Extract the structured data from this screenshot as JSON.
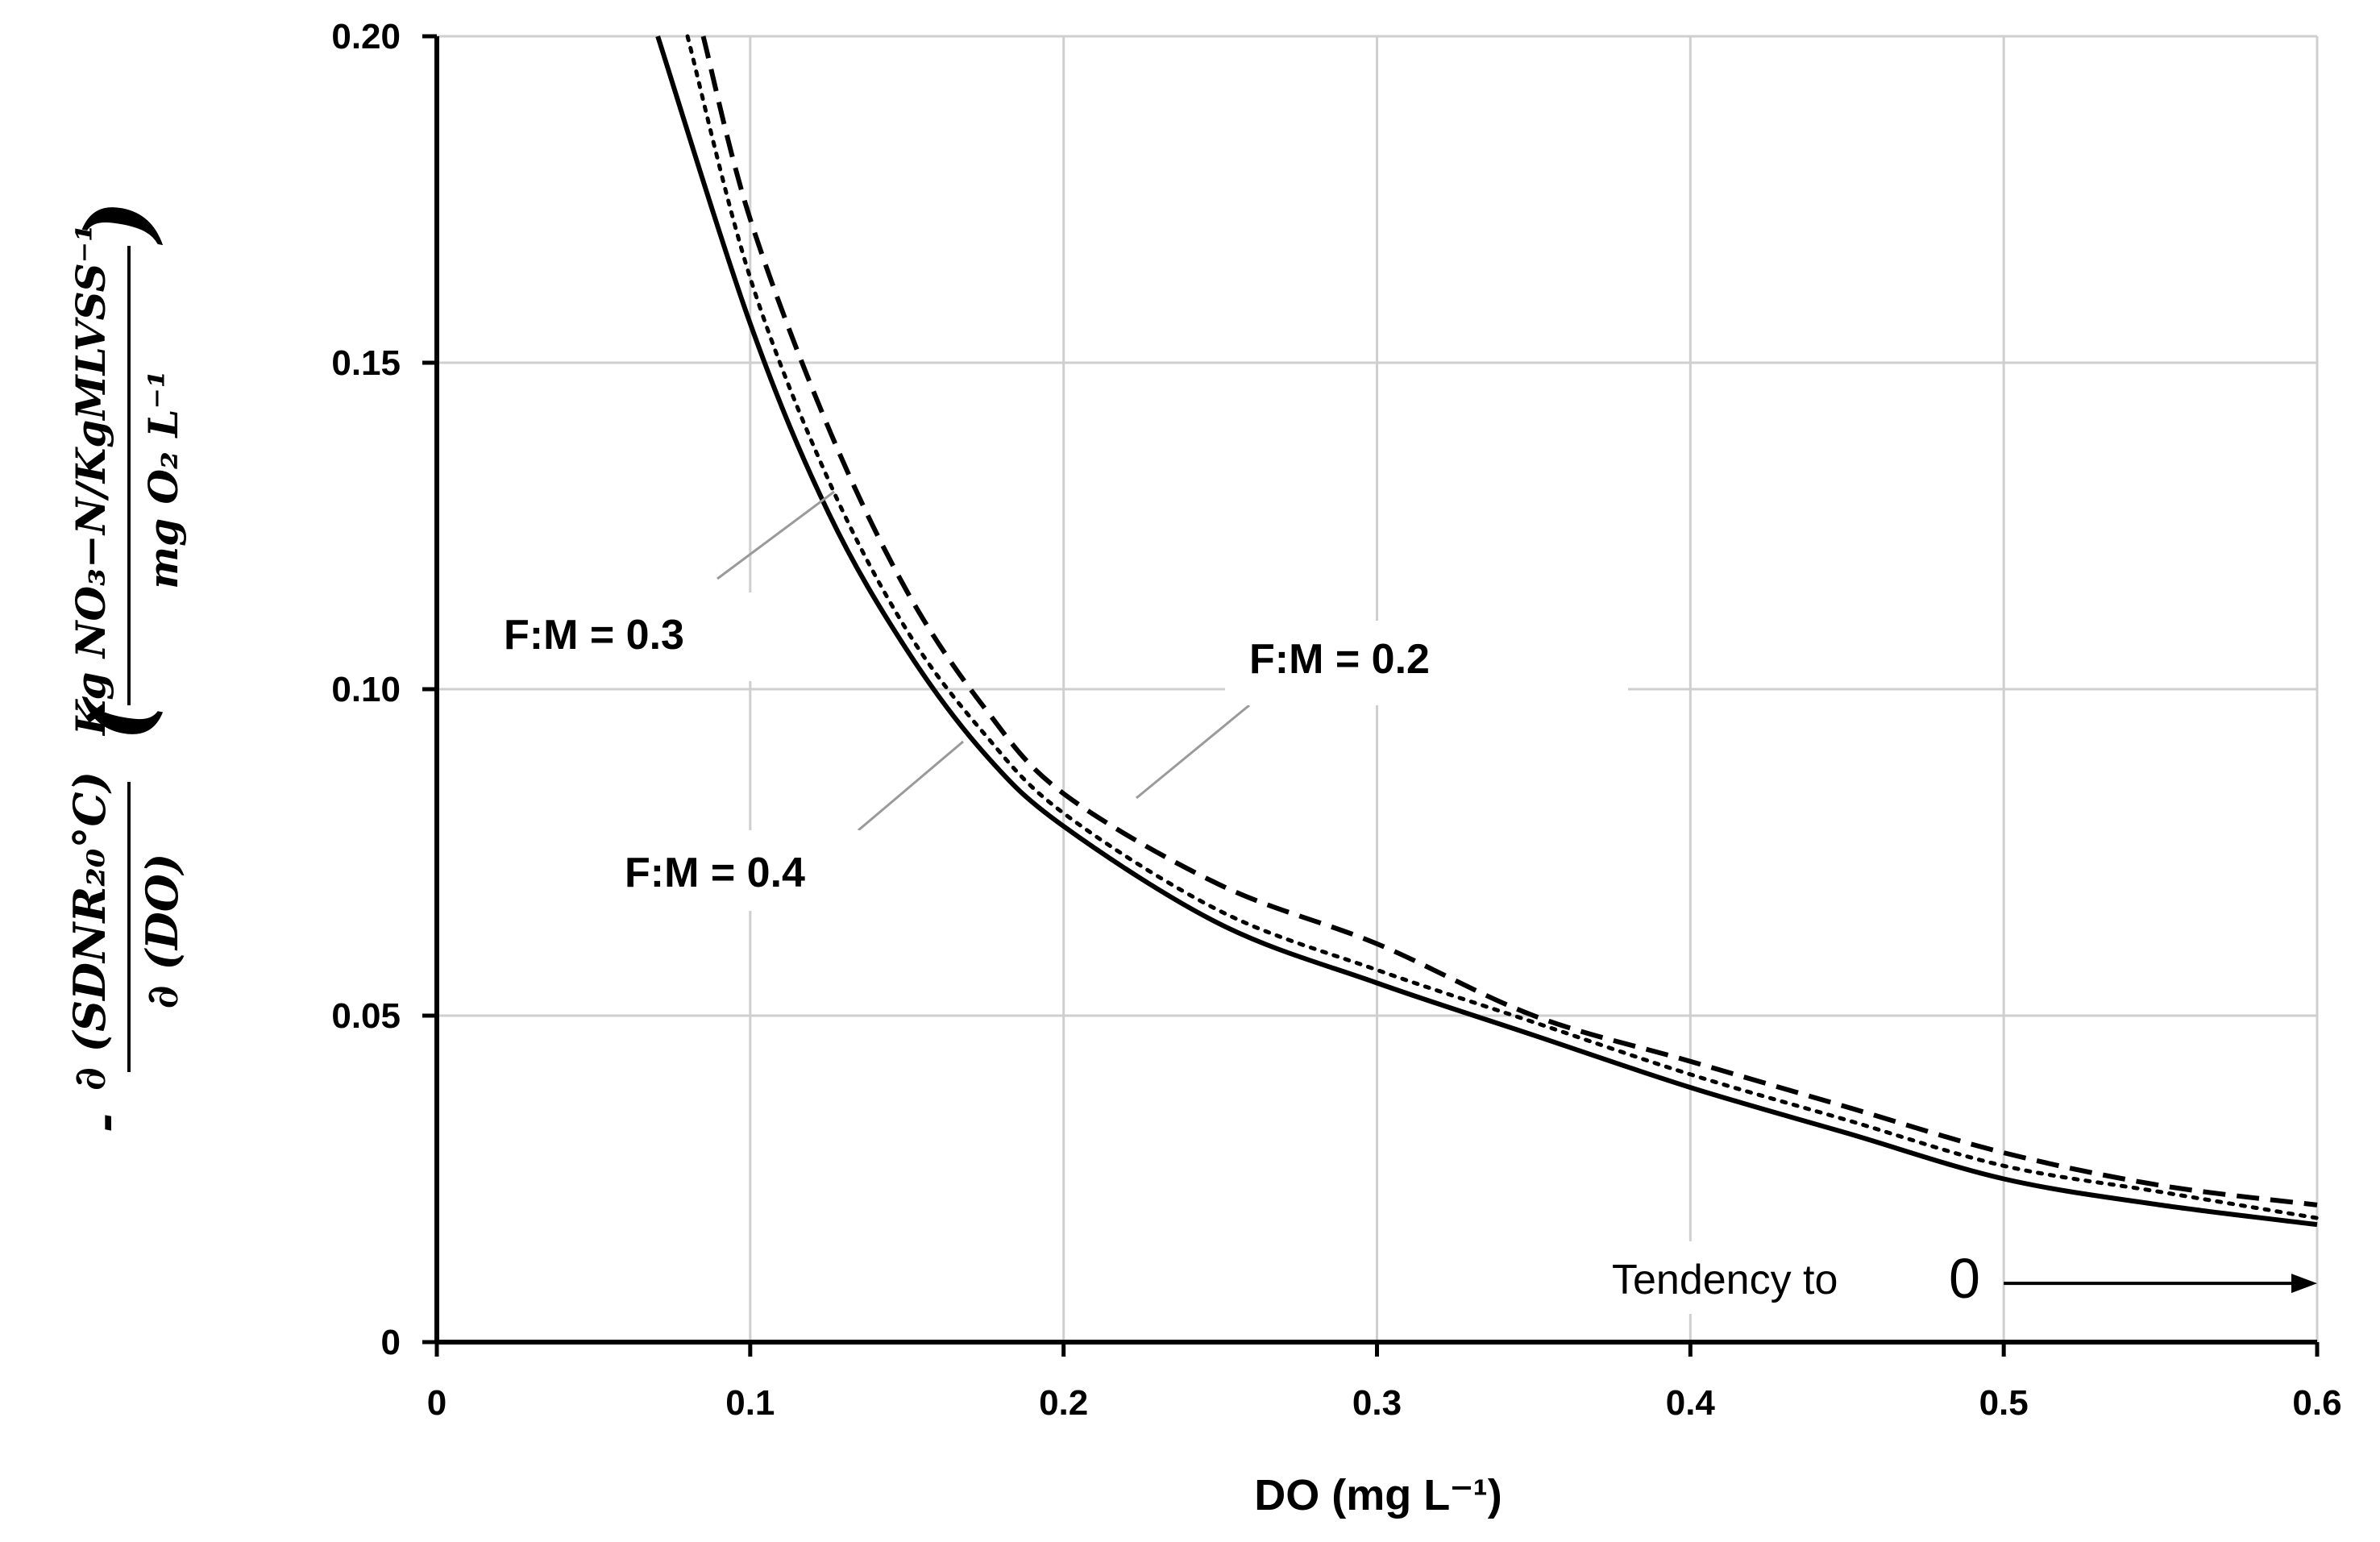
{
  "chart_data": {
    "type": "line",
    "xlabel": "DO (mg L⁻¹)",
    "ylabel": {
      "prefix": "-",
      "derivative_numerator": "∂ (SDNR₂₀°C)",
      "derivative_denominator": "∂ (DO)",
      "unit_numerator": "Kg NO₃−N/KgMLVSS⁻¹",
      "unit_denominator": "mg O₂ L⁻¹"
    },
    "xlim": [
      0,
      0.6
    ],
    "ylim": [
      0,
      0.2
    ],
    "x_ticks": [
      0,
      0.1,
      0.2,
      0.3,
      0.4,
      0.5,
      0.6
    ],
    "x_tick_labels": [
      "0",
      "0.1",
      "0.2",
      "0.3",
      "0.4",
      "0.5",
      "0.6"
    ],
    "y_ticks": [
      0,
      0.05,
      0.1,
      0.15,
      0.2
    ],
    "y_tick_labels": [
      "0",
      "0.05",
      "0.10",
      "0.15",
      "0.20"
    ],
    "grid": true,
    "series": [
      {
        "name": "F:M = 0.2",
        "style": "dashed",
        "x": [
          0.085,
          0.1,
          0.125,
          0.15,
          0.175,
          0.2,
          0.25,
          0.3,
          0.35,
          0.4,
          0.45,
          0.5,
          0.55,
          0.6
        ],
        "y": [
          0.2,
          0.172,
          0.14,
          0.115,
          0.097,
          0.084,
          0.07,
          0.061,
          0.05,
          0.043,
          0.036,
          0.029,
          0.024,
          0.021
        ]
      },
      {
        "name": "F:M = 0.3",
        "style": "dotted",
        "x": [
          0.08,
          0.1,
          0.125,
          0.15,
          0.175,
          0.2,
          0.25,
          0.3,
          0.35,
          0.4,
          0.45,
          0.5,
          0.55,
          0.6
        ],
        "y": [
          0.2,
          0.163,
          0.132,
          0.109,
          0.093,
          0.081,
          0.066,
          0.057,
          0.049,
          0.041,
          0.034,
          0.027,
          0.023,
          0.019
        ]
      },
      {
        "name": "F:M = 0.4",
        "style": "solid",
        "x": [
          0.0705,
          0.1,
          0.125,
          0.15,
          0.175,
          0.2,
          0.25,
          0.3,
          0.35,
          0.4,
          0.45,
          0.5,
          0.55,
          0.6
        ],
        "y": [
          0.2,
          0.156,
          0.127,
          0.106,
          0.09,
          0.079,
          0.064,
          0.055,
          0.047,
          0.039,
          0.032,
          0.025,
          0.021,
          0.018
        ]
      }
    ],
    "annotations": {
      "tendency_text": "Tendency to",
      "tendency_zero": "0",
      "tendency_arrow_from_x": 0.5,
      "tendency_arrow_to_x": 0.6,
      "tendency_y": 0.009
    }
  }
}
